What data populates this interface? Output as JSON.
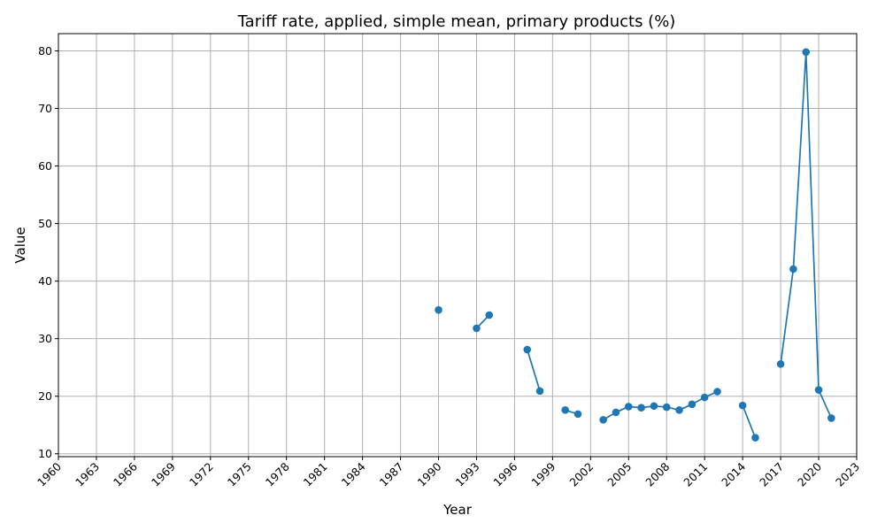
{
  "chart_data": {
    "type": "line",
    "title": "Tariff rate, applied, simple mean, primary products (%)",
    "xlabel": "Year",
    "ylabel": "Value",
    "xlim": [
      1960,
      2023
    ],
    "ylim": [
      9.5,
      83.0
    ],
    "xticks": [
      1960,
      1963,
      1966,
      1969,
      1972,
      1975,
      1978,
      1981,
      1984,
      1987,
      1990,
      1993,
      1996,
      1999,
      2002,
      2005,
      2008,
      2011,
      2014,
      2017,
      2020,
      2023
    ],
    "yticks": [
      10,
      20,
      30,
      40,
      50,
      60,
      70,
      80
    ],
    "grid": true,
    "marker": "circle",
    "color": "#1f77b4",
    "series": [
      {
        "segments": [
          [
            [
              1990,
              35.0
            ]
          ],
          [
            [
              1993,
              31.8
            ],
            [
              1994,
              34.1
            ]
          ],
          [
            [
              1997,
              28.1
            ],
            [
              1998,
              20.9
            ]
          ],
          [
            [
              2000,
              17.6
            ],
            [
              2001,
              16.9
            ]
          ],
          [
            [
              2003,
              15.9
            ],
            [
              2004,
              17.2
            ],
            [
              2005,
              18.2
            ],
            [
              2006,
              18.0
            ],
            [
              2007,
              18.3
            ],
            [
              2008,
              18.1
            ],
            [
              2009,
              17.6
            ],
            [
              2010,
              18.6
            ],
            [
              2011,
              19.8
            ],
            [
              2012,
              20.8
            ]
          ],
          [
            [
              2014,
              18.4
            ],
            [
              2015,
              12.8
            ]
          ],
          [
            [
              2017,
              25.6
            ],
            [
              2018,
              42.1
            ],
            [
              2019,
              79.8
            ],
            [
              2020,
              21.1
            ],
            [
              2021,
              16.2
            ]
          ]
        ]
      }
    ]
  }
}
